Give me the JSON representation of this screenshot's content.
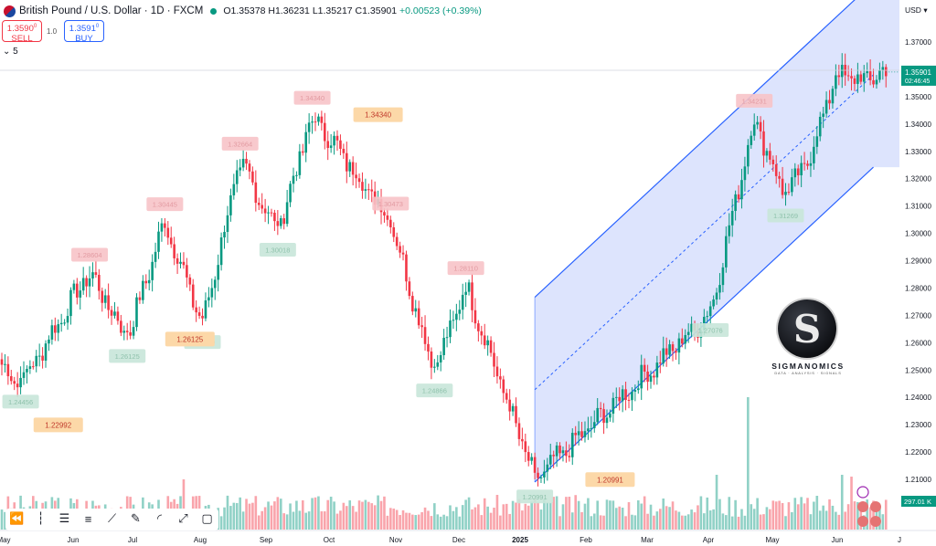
{
  "header": {
    "title": "British Pound / U.S. Dollar · 1D · FXCM",
    "open": "O1.35378",
    "high": "H1.36231",
    "low": "L1.35217",
    "close": "C1.35901",
    "change": "+0.00523 (+0.39%)"
  },
  "trade": {
    "sell_price": "1.3590",
    "sell_sup": "0",
    "sell_label": "SELL",
    "buy_price": "1.3591",
    "buy_sup": "0",
    "buy_label": "BUY",
    "spread": "1.0"
  },
  "interval": "5",
  "currency": "USD",
  "logo": {
    "name": "SIGMANOMICS",
    "tagline": "DATA · ANALYSIS · SIGNALS",
    "letter": "S"
  },
  "colors": {
    "up": "#089981",
    "down": "#f23645",
    "channel": "#2962ff",
    "channel_fill": "#d7dffd"
  },
  "toolbar": [
    "bar-replay-icon",
    "line-tools-icon",
    "horizontal-lines-icon",
    "fib-icon",
    "trendline-icon",
    "pencil-icon",
    "arc-icon",
    "path-icon",
    "rectangle-icon"
  ],
  "chart_data": {
    "type": "candlestick",
    "ylim": [
      1.2013,
      1.3918
    ],
    "y_ticks": [
      "1.37000",
      "1.36000",
      "1.35000",
      "1.34000",
      "1.33000",
      "1.32000",
      "1.31000",
      "1.30000",
      "1.29000",
      "1.28000",
      "1.27000",
      "1.26000",
      "1.25000",
      "1.24000",
      "1.23000",
      "1.22000",
      "1.21000"
    ],
    "x_ticks": [
      "May",
      "Jun",
      "Jul",
      "Aug",
      "Sep",
      "Oct",
      "Nov",
      "Dec",
      "2025",
      "Feb",
      "Mar",
      "Apr",
      "May",
      "Jun",
      "J"
    ],
    "last_price": "1.35901",
    "countdown": "02:46:45",
    "volume_label": "297.01 K",
    "pivots": [
      {
        "label": "1.24456",
        "type": "low",
        "index": 6,
        "price": 1.2446
      },
      {
        "label": "1.28604",
        "type": "high",
        "index": 28,
        "price": 1.286
      },
      {
        "label": "1.26125",
        "type": "low",
        "index": 40,
        "price": 1.2613
      },
      {
        "label": "1.30445",
        "type": "high",
        "index": 52,
        "price": 1.3045
      },
      {
        "label": "1.26640",
        "type": "low",
        "index": 64,
        "price": 1.2664
      },
      {
        "label": "1.32664",
        "type": "high",
        "index": 76,
        "price": 1.3266
      },
      {
        "label": "1.30018",
        "type": "low",
        "index": 88,
        "price": 1.3002
      },
      {
        "label": "1.34340",
        "type": "high",
        "index": 99,
        "price": 1.3434
      },
      {
        "label": "1.30473",
        "type": "high",
        "index": 124,
        "price": 1.3047
      },
      {
        "label": "1.24866",
        "type": "low",
        "index": 138,
        "price": 1.2487
      },
      {
        "label": "1.28110",
        "type": "high",
        "index": 148,
        "price": 1.2811
      },
      {
        "label": "1.20991",
        "type": "low",
        "index": 170,
        "price": 1.2099
      },
      {
        "label": "1.27076",
        "type": "low",
        "index": 226,
        "price": 1.2708
      },
      {
        "label": "1.34231",
        "type": "high",
        "index": 240,
        "price": 1.3423
      },
      {
        "label": "1.31269",
        "type": "low",
        "index": 250,
        "price": 1.3127
      }
    ],
    "price_tags": [
      {
        "label": "1.34340",
        "price": 1.3434,
        "x_index": 120
      },
      {
        "label": "1.26125",
        "price": 1.2613,
        "x_index": 60
      },
      {
        "label": "1.22992",
        "price": 1.2299,
        "x_index": 18
      },
      {
        "label": "1.20991",
        "price": 1.2099,
        "x_index": 194
      }
    ],
    "channel": {
      "start_index": 170,
      "end_index": 278,
      "upper": [
        1.2766,
        1.3918
      ],
      "middle": [
        1.2428,
        1.358
      ],
      "lower": [
        1.209,
        1.3242
      ]
    }
  }
}
